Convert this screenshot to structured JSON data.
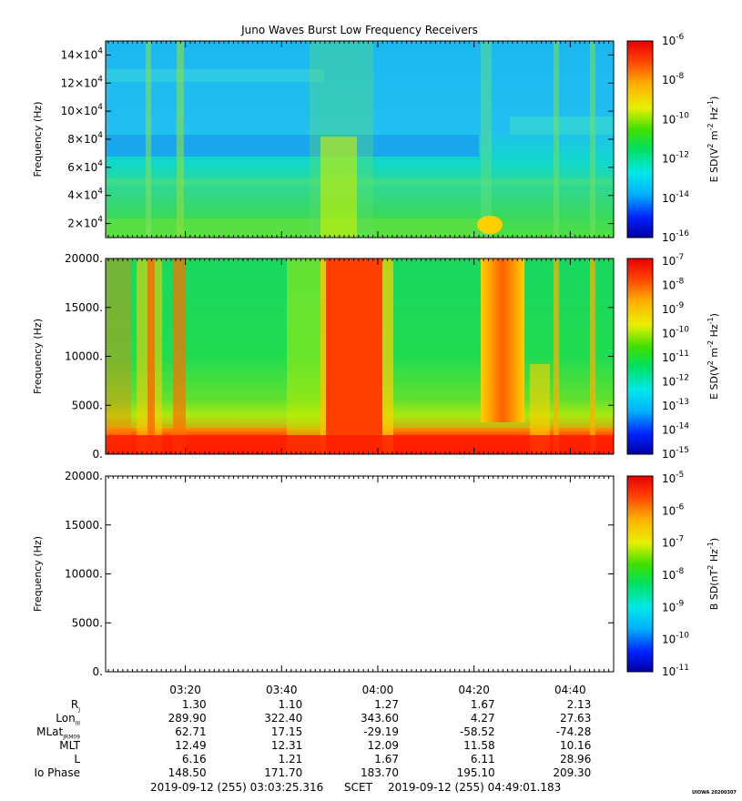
{
  "chart_data": {
    "title": "Juno Waves Burst Low Frequency Receivers",
    "type": "heatmap",
    "stamp": "UIOWA 20200307",
    "time_ticks": [
      "03:20",
      "03:40",
      "04:00",
      "04:20",
      "04:40"
    ],
    "time_range_label": {
      "start": "2019-09-12 (255) 03:03:25.316",
      "mid": "SCET",
      "end": "2019-09-12 (255) 04:49:01.183"
    },
    "panels": [
      {
        "ylabel": "Frequency (Hz)",
        "yticks": [
          {
            "base": "2×10",
            "exp": "4",
            "v": 20000
          },
          {
            "base": "4×10",
            "exp": "4",
            "v": 40000
          },
          {
            "base": "6×10",
            "exp": "4",
            "v": 60000
          },
          {
            "base": "8×10",
            "exp": "4",
            "v": 80000
          },
          {
            "base": "10×10",
            "exp": "4",
            "v": 100000
          },
          {
            "base": "12×10",
            "exp": "4",
            "v": 120000
          },
          {
            "base": "14×10",
            "exp": "4",
            "v": 140000
          }
        ],
        "ylim": [
          10000,
          150000
        ],
        "colorbar": {
          "label": "E SD(V² m⁻² Hz⁻¹)",
          "label_parts": [
            "E SD(V",
            "2",
            " m",
            "-2",
            " Hz",
            "-1",
            ")"
          ],
          "ticks": [
            {
              "base": "10",
              "exp": "-6"
            },
            {
              "base": "10",
              "exp": "-8"
            },
            {
              "base": "10",
              "exp": "-10"
            },
            {
              "base": "10",
              "exp": "-12"
            },
            {
              "base": "10",
              "exp": "-14"
            },
            {
              "base": "10",
              "exp": "-16"
            }
          ]
        },
        "empty": false
      },
      {
        "ylabel": "Frequency (Hz)",
        "yticks": [
          {
            "base": "0.",
            "exp": "",
            "v": 0
          },
          {
            "base": "5000.",
            "exp": "",
            "v": 5000
          },
          {
            "base": "10000.",
            "exp": "",
            "v": 10000
          },
          {
            "base": "15000.",
            "exp": "",
            "v": 15000
          },
          {
            "base": "20000.",
            "exp": "",
            "v": 20000
          }
        ],
        "ylim": [
          0,
          20000
        ],
        "colorbar": {
          "label_parts": [
            "E SD(V",
            "2",
            " m",
            "-2",
            " Hz",
            "-1",
            ")"
          ],
          "ticks": [
            {
              "base": "10",
              "exp": "-7"
            },
            {
              "base": "10",
              "exp": "-8"
            },
            {
              "base": "10",
              "exp": "-9"
            },
            {
              "base": "10",
              "exp": "-10"
            },
            {
              "base": "10",
              "exp": "-11"
            },
            {
              "base": "10",
              "exp": "-12"
            },
            {
              "base": "10",
              "exp": "-13"
            },
            {
              "base": "10",
              "exp": "-14"
            },
            {
              "base": "10",
              "exp": "-15"
            }
          ]
        },
        "empty": false
      },
      {
        "ylabel": "Frequency (Hz)",
        "yticks": [
          {
            "base": "0.",
            "exp": "",
            "v": 0
          },
          {
            "base": "5000.",
            "exp": "",
            "v": 5000
          },
          {
            "base": "10000.",
            "exp": "",
            "v": 10000
          },
          {
            "base": "15000.",
            "exp": "",
            "v": 15000
          },
          {
            "base": "20000.",
            "exp": "",
            "v": 20000
          }
        ],
        "ylim": [
          0,
          20000
        ],
        "colorbar": {
          "label_parts": [
            "B SD(nT",
            "2",
            " Hz",
            "-1",
            ")"
          ],
          "ticks": [
            {
              "base": "10",
              "exp": "-5"
            },
            {
              "base": "10",
              "exp": "-6"
            },
            {
              "base": "10",
              "exp": "-7"
            },
            {
              "base": "10",
              "exp": "-8"
            },
            {
              "base": "10",
              "exp": "-9"
            },
            {
              "base": "10",
              "exp": "-10"
            },
            {
              "base": "10",
              "exp": "-11"
            }
          ]
        },
        "empty": true
      }
    ],
    "ephemeris": {
      "rows": [
        {
          "label": "R",
          "sub": "J",
          "values": [
            "1.30",
            "1.10",
            "1.27",
            "1.67",
            "2.13"
          ]
        },
        {
          "label": "Lon",
          "sub": "III",
          "values": [
            "289.90",
            "322.40",
            "343.60",
            "4.27",
            "27.63"
          ]
        },
        {
          "label": "MLat",
          "sub": "JRM09",
          "values": [
            "62.71",
            "17.15",
            "-29.19",
            "-58.52",
            "-74.28"
          ]
        },
        {
          "label": "MLT",
          "sub": "",
          "values": [
            "12.49",
            "12.31",
            "12.09",
            "11.58",
            "10.16"
          ]
        },
        {
          "label": "L",
          "sub": "",
          "values": [
            "6.16",
            "1.21",
            "1.67",
            "6.11",
            "28.96"
          ]
        },
        {
          "label": "Io Phase",
          "sub": "",
          "values": [
            "148.50",
            "171.70",
            "183.70",
            "195.10",
            "209.30"
          ]
        }
      ]
    }
  }
}
